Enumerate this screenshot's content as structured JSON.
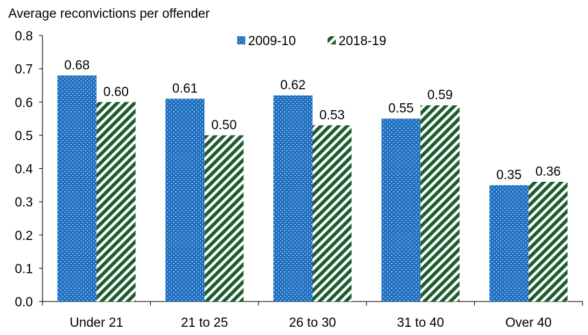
{
  "chart_data": {
    "type": "bar",
    "title": "",
    "ylabel": "Average reconvictions per offender",
    "xlabel": "",
    "categories": [
      "Under 21",
      "21 to 25",
      "26 to 30",
      "31 to 40",
      "Over 40"
    ],
    "series": [
      {
        "name": "2009-10",
        "values": [
          0.68,
          0.61,
          0.62,
          0.55,
          0.35
        ],
        "color": "#1f6fc1",
        "pattern": "dots"
      },
      {
        "name": "2018-19",
        "values": [
          0.6,
          0.5,
          0.53,
          0.59,
          0.36
        ],
        "color": "#1e5c2f",
        "pattern": "diagonal-stripes"
      }
    ],
    "data_labels": [
      [
        "0.68",
        "0.61",
        "0.62",
        "0.55",
        "0.35"
      ],
      [
        "0.60",
        "0.50",
        "0.53",
        "0.59",
        "0.36"
      ]
    ],
    "ylim": [
      0,
      0.8
    ],
    "yticks": [
      "0.0",
      "0.1",
      "0.2",
      "0.3",
      "0.4",
      "0.5",
      "0.6",
      "0.7",
      "0.8"
    ],
    "grid": false,
    "legend_position": "top-center"
  }
}
